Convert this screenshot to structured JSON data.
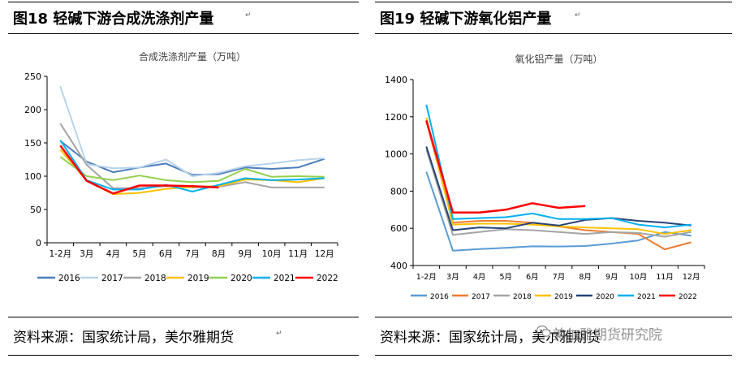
{
  "left": {
    "fig_title": "图18  轻碱下游合成洗涤剂产量",
    "source": "资料来源：国家统计局，美尔雅期货",
    "chart_data": {
      "type": "line",
      "title": "合成洗涤剂产量（万吨）",
      "xlabel": "",
      "ylabel": "",
      "ylim": [
        0,
        250
      ],
      "yticks": [
        0,
        50,
        100,
        150,
        200,
        250
      ],
      "grid": false,
      "legend": "bottom",
      "categories": [
        "1-2月",
        "3月",
        "4月",
        "5月",
        "6月",
        "7月",
        "8月",
        "9月",
        "10月",
        "11月",
        "12月"
      ],
      "series": [
        {
          "name": "2016",
          "color": "#4a7ebb",
          "values": [
            153,
            122,
            106,
            113,
            119,
            102,
            103,
            113,
            111,
            113,
            126
          ]
        },
        {
          "name": "2017",
          "color": "#b8d3ec",
          "values": [
            235,
            118,
            112,
            113,
            125,
            100,
            105,
            115,
            119,
            124,
            127
          ]
        },
        {
          "name": "2018",
          "color": "#a5a5a5",
          "values": [
            179,
            117,
            82,
            82,
            85,
            83,
            84,
            91,
            83,
            83,
            83
          ]
        },
        {
          "name": "2019",
          "color": "#ffc000",
          "values": [
            140,
            93,
            73,
            75,
            81,
            84,
            85,
            95,
            94,
            91,
            97
          ]
        },
        {
          "name": "2020",
          "color": "#92d050",
          "values": [
            129,
            100,
            94,
            101,
            94,
            91,
            93,
            111,
            99,
            100,
            99
          ]
        },
        {
          "name": "2021",
          "color": "#00b0f0",
          "values": [
            154,
            94,
            80,
            80,
            87,
            77,
            87,
            97,
            94,
            95,
            97
          ]
        },
        {
          "name": "2022",
          "color": "#ff0000",
          "values": [
            146,
            93,
            74,
            86,
            86,
            85,
            83,
            null,
            null,
            null,
            null
          ]
        }
      ]
    }
  },
  "right": {
    "fig_title": "图19  轻碱下游氧化铝产量",
    "source": "资料来源：国家统计局，美尔雅期货",
    "watermark": "美尔雅期货研究院",
    "chart_data": {
      "type": "line",
      "title": "氧化铝产量（万吨）",
      "xlabel": "",
      "ylabel": "",
      "ylim": [
        400,
        1400
      ],
      "yticks": [
        400,
        600,
        800,
        1000,
        1200,
        1400
      ],
      "grid": false,
      "legend": "bottom",
      "categories": [
        "1-2月",
        "3月",
        "4月",
        "5月",
        "6月",
        "7月",
        "8月",
        "9月",
        "10月",
        "11月",
        "12月"
      ],
      "series": [
        {
          "name": "2016",
          "color": "#5b9bd5",
          "values": [
            905,
            480,
            488,
            495,
            503,
            502,
            505,
            518,
            535,
            580,
            560
          ]
        },
        {
          "name": "2017",
          "color": "#ed7d31",
          "values": [
            1180,
            630,
            640,
            640,
            630,
            610,
            590,
            580,
            570,
            487,
            525
          ]
        },
        {
          "name": "2018",
          "color": "#a5a5a5",
          "values": [
            1025,
            565,
            580,
            595,
            590,
            580,
            570,
            580,
            575,
            555,
            580
          ]
        },
        {
          "name": "2019",
          "color": "#ffc000",
          "values": [
            1195,
            620,
            625,
            625,
            620,
            610,
            605,
            600,
            595,
            570,
            590
          ]
        },
        {
          "name": "2020",
          "color": "#264478",
          "values": [
            1040,
            590,
            605,
            600,
            630,
            615,
            645,
            655,
            640,
            630,
            615
          ]
        },
        {
          "name": "2021",
          "color": "#00b0f0",
          "values": [
            1265,
            650,
            655,
            660,
            680,
            650,
            650,
            655,
            620,
            605,
            620
          ]
        },
        {
          "name": "2022",
          "color": "#ff0000",
          "values": [
            1180,
            685,
            685,
            700,
            735,
            710,
            720,
            null,
            null,
            null,
            null
          ]
        }
      ]
    }
  }
}
